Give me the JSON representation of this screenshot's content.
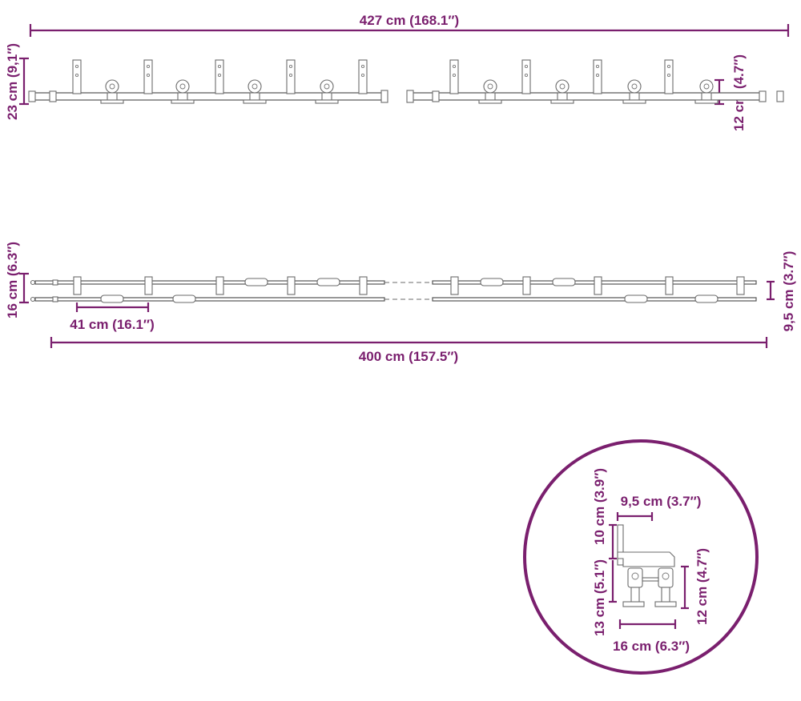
{
  "diagram": {
    "colors": {
      "dimension": "#7a1f6e",
      "drawing": "#6b6b6b"
    },
    "front_view": {
      "overall_length": "427 cm (168.1″)",
      "height": "23 cm (9,1″)",
      "hanger_height": "12 cm (4.7″)"
    },
    "top_view": {
      "width": "16 cm (6.3″)",
      "hanger_spacing": "41 cm (16.1″)",
      "rail_length": "400 cm (157.5″)",
      "rail_gap": "9,5 cm (3.7″)"
    },
    "detail_view": {
      "top_width": "9,5 cm (3.7″)",
      "upper_height": "10 cm (3.9″)",
      "total_height": "13 cm (5.1″)",
      "wheel_height": "12 cm (4.7″)",
      "bottom_width": "16 cm (6.3″)"
    }
  }
}
